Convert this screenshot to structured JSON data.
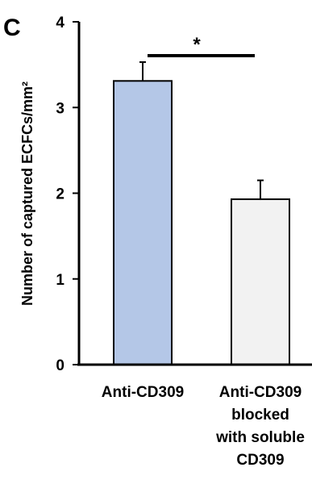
{
  "panel_label": "C",
  "chart_data": {
    "type": "bar",
    "ylabel": "Number of captured ECFCs/mm²",
    "ylim": [
      0,
      4
    ],
    "yticks": [
      0,
      1,
      2,
      3,
      4
    ],
    "grid": false,
    "categories": [
      [
        "Anti-CD309"
      ],
      [
        "Anti-CD309",
        "blocked",
        "with soluble",
        "CD309"
      ]
    ],
    "values": [
      3.31,
      1.93
    ],
    "errors": [
      0.22,
      0.22
    ],
    "bar_colors": [
      "#b4c7e7",
      "#f2f2f2"
    ],
    "significance": {
      "between": [
        0,
        1
      ],
      "label": "*"
    }
  }
}
